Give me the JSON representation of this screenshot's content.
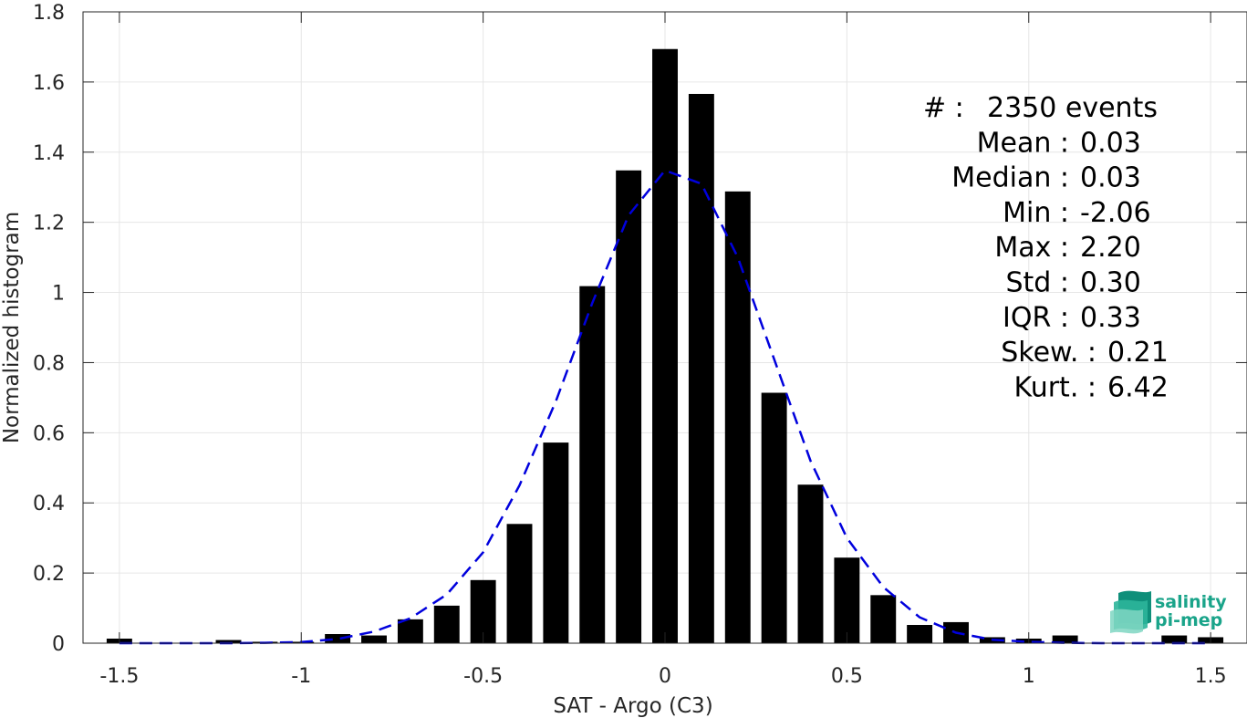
{
  "chart_data": {
    "type": "bar",
    "xlabel": "SAT - Argo (C3)",
    "ylabel": "Normalized histogram",
    "xlim": [
      -1.6,
      1.6
    ],
    "ylim": [
      0,
      1.8
    ],
    "xticks": [
      -1.5,
      -1,
      -0.5,
      0,
      0.5,
      1,
      1.5
    ],
    "xtick_labels": [
      "-1.5",
      "-1",
      "-0.5",
      "0",
      "0.5",
      "1",
      "1.5"
    ],
    "yticks": [
      0,
      0.2,
      0.4,
      0.6,
      0.8,
      1,
      1.2,
      1.4,
      1.6,
      1.8
    ],
    "ytick_labels": [
      "0",
      "0.2",
      "0.4",
      "0.6",
      "0.8",
      "1",
      "1.2",
      "1.4",
      "1.6",
      "1.8"
    ],
    "grid": true,
    "bar_width": 0.07,
    "bar_color": "#000000",
    "bars": {
      "x": [
        -1.5,
        -1.2,
        -1.1,
        -1.0,
        -0.9,
        -0.8,
        -0.7,
        -0.6,
        -0.5,
        -0.4,
        -0.3,
        -0.2,
        -0.1,
        0.0,
        0.1,
        0.2,
        0.3,
        0.4,
        0.5,
        0.6,
        0.7,
        0.8,
        0.9,
        1.0,
        1.1,
        1.4,
        1.5
      ],
      "values": [
        0.013,
        0.009,
        0.004,
        0.004,
        0.026,
        0.022,
        0.068,
        0.107,
        0.18,
        0.34,
        0.572,
        1.018,
        1.348,
        1.694,
        1.566,
        1.288,
        0.714,
        0.452,
        0.244,
        0.137,
        0.052,
        0.06,
        0.017,
        0.013,
        0.022,
        0.022,
        0.017
      ]
    },
    "fit_curve": {
      "style": "dashed",
      "color": "#0000dd",
      "x": [
        -1.5,
        -1.4,
        -1.3,
        -1.2,
        -1.1,
        -1.0,
        -0.9,
        -0.8,
        -0.7,
        -0.6,
        -0.5,
        -0.4,
        -0.3,
        -0.2,
        -0.1,
        0.0,
        0.1,
        0.2,
        0.3,
        0.4,
        0.5,
        0.6,
        0.7,
        0.8,
        0.9,
        1.0,
        1.1,
        1.2,
        1.3,
        1.4,
        1.5
      ],
      "y": [
        0.0,
        0.0,
        0.0,
        0.0,
        0.001,
        0.003,
        0.012,
        0.033,
        0.071,
        0.139,
        0.259,
        0.45,
        0.69,
        0.97,
        1.22,
        1.348,
        1.31,
        1.1,
        0.81,
        0.52,
        0.3,
        0.16,
        0.074,
        0.03,
        0.01,
        0.004,
        0.001,
        0.0,
        0.0,
        0.0,
        0.0
      ]
    },
    "stats": [
      {
        "label": "#  :",
        "value": "2350 events"
      },
      {
        "label": "Mean :",
        "value": "0.03"
      },
      {
        "label": "Median :",
        "value": "0.03"
      },
      {
        "label": "Min :",
        "value": "-2.06"
      },
      {
        "label": "Max :",
        "value": "2.20"
      },
      {
        "label": "Std :",
        "value": "0.30"
      },
      {
        "label": "IQR :",
        "value": "0.33"
      },
      {
        "label": "Skew. :",
        "value": "0.21"
      },
      {
        "label": "Kurt. :",
        "value": "6.42"
      }
    ]
  },
  "logo": {
    "line1": "salinity",
    "line2": "pi-mep",
    "color": "#1aa48a"
  }
}
